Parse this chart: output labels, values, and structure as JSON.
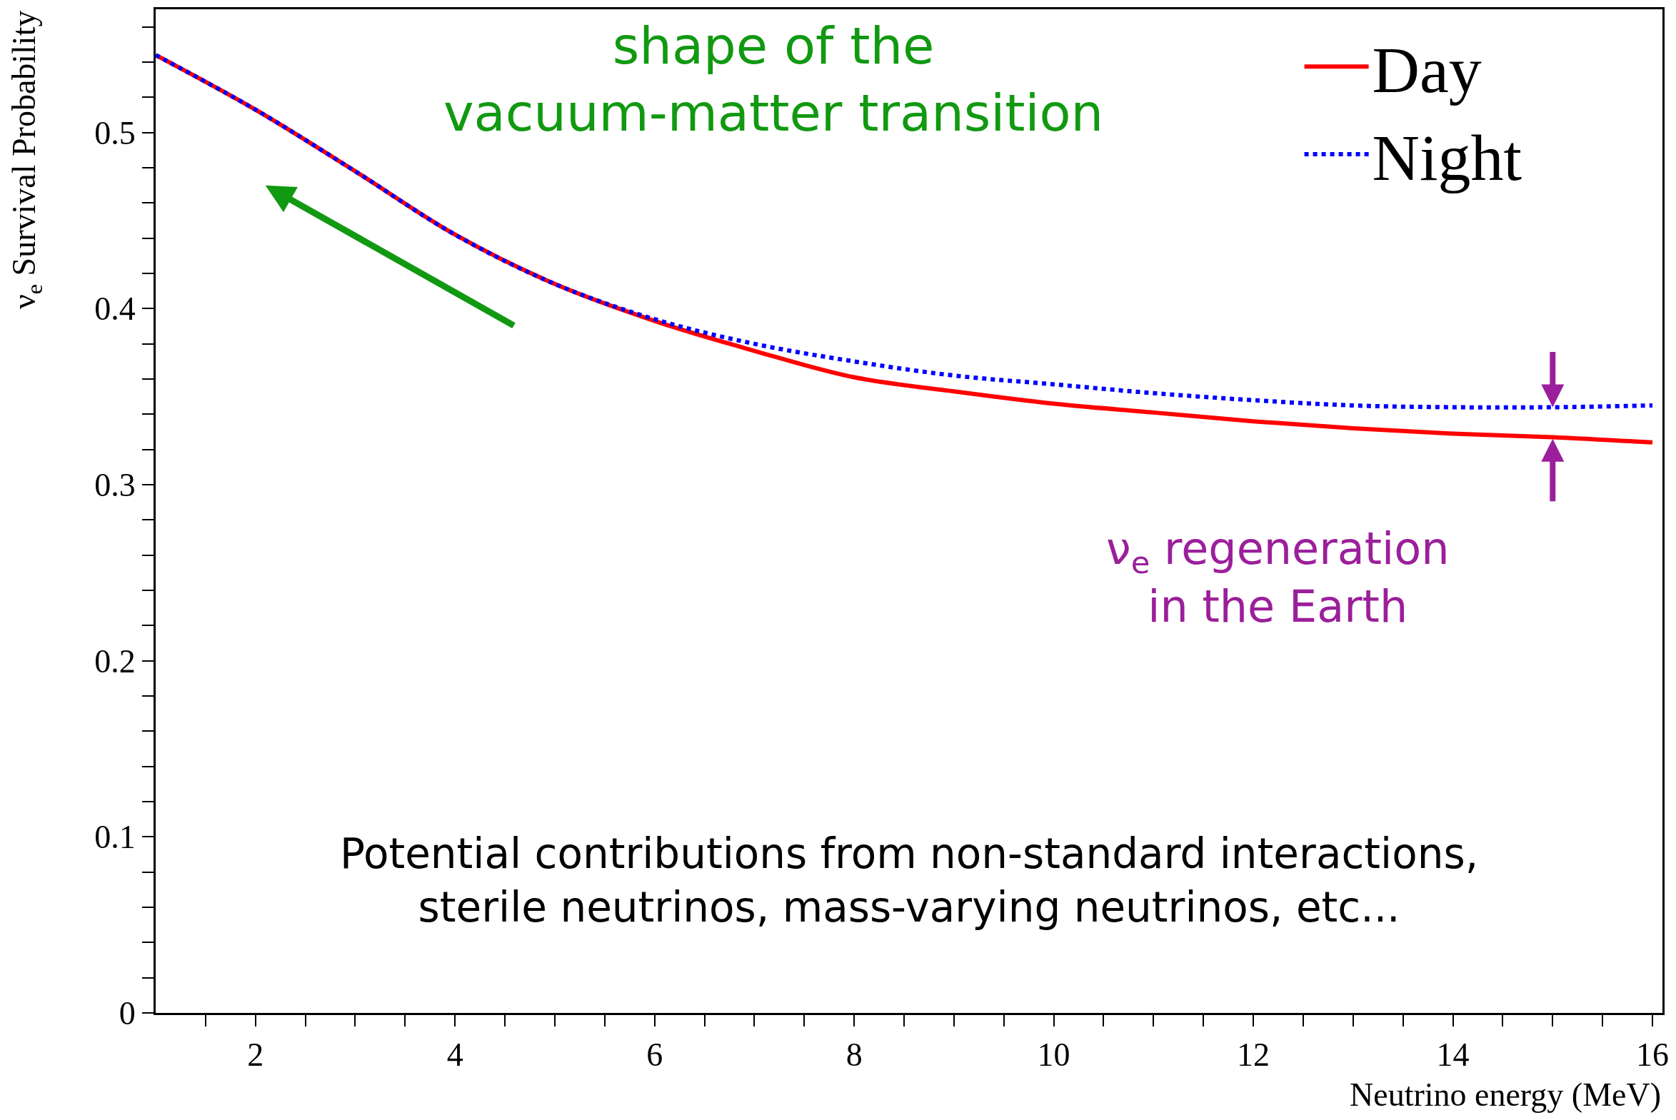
{
  "chart_data": {
    "type": "line",
    "xlabel": "Neutrino energy (MeV)",
    "ylabel": "ν$_{e}$ Survival Probability",
    "x": [
      1,
      2,
      3,
      4,
      5,
      6,
      7,
      8,
      9,
      10,
      11,
      12,
      13,
      14,
      15,
      16
    ],
    "series": [
      {
        "name": "Day",
        "color": "#ff0000",
        "line_style": "solid",
        "values": [
          0.544,
          0.513,
          0.478,
          0.442,
          0.414,
          0.393,
          0.376,
          0.361,
          0.353,
          0.346,
          0.341,
          0.336,
          0.332,
          0.329,
          0.327,
          0.324
        ]
      },
      {
        "name": "Night",
        "color": "#0000ff",
        "line_style": "dotted",
        "values": [
          0.544,
          0.513,
          0.478,
          0.442,
          0.414,
          0.394,
          0.38,
          0.37,
          0.362,
          0.357,
          0.352,
          0.348,
          0.345,
          0.344,
          0.344,
          0.345
        ]
      }
    ],
    "xlim": [
      1,
      16.1
    ],
    "ylim": [
      0,
      0.57
    ],
    "xticks": [
      {
        "value": 1.5,
        "label": null
      },
      2,
      {
        "value": 2.5,
        "label": null
      },
      {
        "value": 3,
        "label": null
      },
      {
        "value": 3.5,
        "label": null
      },
      4,
      {
        "value": 4.5,
        "label": null
      },
      {
        "value": 5,
        "label": null
      },
      {
        "value": 5.5,
        "label": null
      },
      6,
      {
        "value": 6.5,
        "label": null
      },
      {
        "value": 7,
        "label": null
      },
      {
        "value": 7.5,
        "label": null
      },
      8,
      {
        "value": 8.5,
        "label": null
      },
      {
        "value": 9,
        "label": null
      },
      {
        "value": 9.5,
        "label": null
      },
      10,
      {
        "value": 10.5,
        "label": null
      },
      {
        "value": 11,
        "label": null
      },
      {
        "value": 11.5,
        "label": null
      },
      12,
      {
        "value": 12.5,
        "label": null
      },
      {
        "value": 13,
        "label": null
      },
      {
        "value": 13.5,
        "label": null
      },
      14,
      {
        "value": 14.5,
        "label": null
      },
      {
        "value": 15,
        "label": null
      },
      {
        "value": 15.5,
        "label": null
      },
      16
    ],
    "yticks": [
      0,
      {
        "value": 0.02,
        "label": null
      },
      {
        "value": 0.04,
        "label": null
      },
      {
        "value": 0.06,
        "label": null
      },
      {
        "value": 0.08,
        "label": null
      },
      0.1,
      {
        "value": 0.12,
        "label": null
      },
      {
        "value": 0.14,
        "label": null
      },
      {
        "value": 0.16,
        "label": null
      },
      {
        "value": 0.18,
        "label": null
      },
      0.2,
      {
        "value": 0.22,
        "label": null
      },
      {
        "value": 0.24,
        "label": null
      },
      {
        "value": 0.26,
        "label": null
      },
      {
        "value": 0.28,
        "label": null
      },
      0.3,
      {
        "value": 0.32,
        "label": null
      },
      {
        "value": 0.34,
        "label": null
      },
      {
        "value": 0.36,
        "label": null
      },
      {
        "value": 0.38,
        "label": null
      },
      0.4,
      {
        "value": 0.42,
        "label": null
      },
      {
        "value": 0.44,
        "label": null
      },
      {
        "value": 0.46,
        "label": null
      },
      {
        "value": 0.48,
        "label": null
      },
      0.5,
      {
        "value": 0.52,
        "label": null
      },
      {
        "value": 0.54,
        "label": null
      },
      {
        "value": 0.56,
        "label": null
      }
    ],
    "legend": "top right",
    "annotations": [
      "shape of the\nvacuum-matter transition",
      "ν$_{e}$ regeneration\nin the Earth",
      "Potential contributions from non-standard interactions,\nsterile neutrinos, mass-varying neutrinos, etc..."
    ]
  }
}
